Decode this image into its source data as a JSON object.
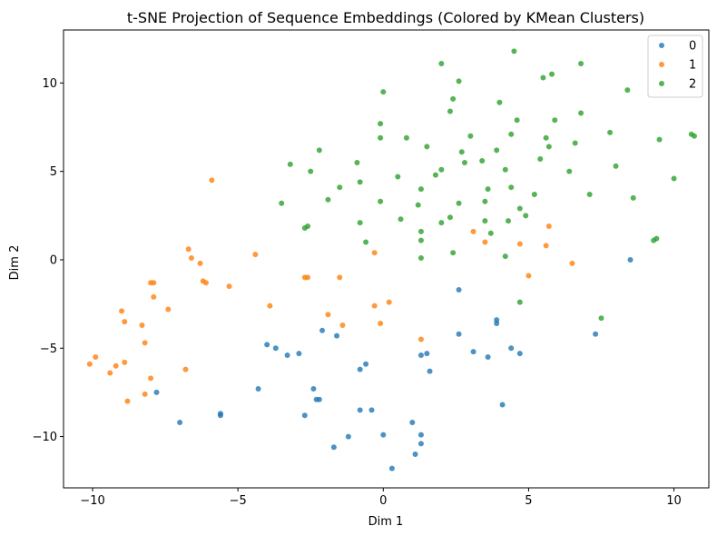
{
  "chart_data": {
    "type": "scatter",
    "title": "t-SNE Projection of Sequence Embeddings (Colored by KMean Clusters)",
    "xlabel": "Dim 1",
    "ylabel": "Dim 2",
    "xlim": [
      -11.0,
      11.2
    ],
    "ylim": [
      -12.9,
      13.0
    ],
    "xticks": [
      -10,
      -5,
      0,
      5,
      10
    ],
    "yticks": [
      -10,
      -5,
      0,
      5,
      10
    ],
    "xtick_labels": [
      "−10",
      "−5",
      "0",
      "5",
      "10"
    ],
    "ytick_labels": [
      "−10",
      "−5",
      "0",
      "5",
      "10"
    ],
    "grid": false,
    "legend_position": "top-right",
    "series": [
      {
        "name": "0",
        "color": "#1f77b4",
        "points": [
          [
            -7.8,
            -7.5
          ],
          [
            -7.0,
            -9.2
          ],
          [
            -5.6,
            -8.7
          ],
          [
            -5.6,
            -8.8
          ],
          [
            -4.3,
            -7.3
          ],
          [
            -4.0,
            -4.8
          ],
          [
            -3.7,
            -5.0
          ],
          [
            -3.3,
            -5.4
          ],
          [
            -2.9,
            -5.3
          ],
          [
            -2.7,
            -8.8
          ],
          [
            -2.4,
            -7.3
          ],
          [
            -2.3,
            -7.9
          ],
          [
            -2.2,
            -7.9
          ],
          [
            -2.1,
            -4.0
          ],
          [
            -1.7,
            -10.6
          ],
          [
            -1.6,
            -4.3
          ],
          [
            -1.2,
            -10.0
          ],
          [
            -0.8,
            -8.5
          ],
          [
            -0.8,
            -6.2
          ],
          [
            -0.6,
            -5.9
          ],
          [
            -0.4,
            -8.5
          ],
          [
            0.0,
            -9.9
          ],
          [
            0.3,
            -11.8
          ],
          [
            1.0,
            -9.2
          ],
          [
            1.1,
            -11.0
          ],
          [
            1.3,
            -10.4
          ],
          [
            1.3,
            -9.9
          ],
          [
            1.3,
            -5.4
          ],
          [
            1.5,
            -5.3
          ],
          [
            1.6,
            -6.3
          ],
          [
            2.6,
            -1.7
          ],
          [
            2.6,
            -4.2
          ],
          [
            3.1,
            -5.2
          ],
          [
            3.6,
            -5.5
          ],
          [
            3.9,
            -3.6
          ],
          [
            3.9,
            -3.4
          ],
          [
            4.1,
            -8.2
          ],
          [
            4.4,
            -5.0
          ],
          [
            4.7,
            -5.3
          ],
          [
            7.3,
            -4.2
          ],
          [
            8.5,
            0.0
          ]
        ]
      },
      {
        "name": "1",
        "color": "#ff7f0e",
        "points": [
          [
            -10.1,
            -5.9
          ],
          [
            -9.9,
            -5.5
          ],
          [
            -9.4,
            -6.4
          ],
          [
            -9.2,
            -6.0
          ],
          [
            -9.0,
            -2.9
          ],
          [
            -8.9,
            -3.5
          ],
          [
            -8.9,
            -5.8
          ],
          [
            -8.8,
            -8.0
          ],
          [
            -8.3,
            -3.7
          ],
          [
            -8.2,
            -4.7
          ],
          [
            -8.2,
            -7.6
          ],
          [
            -8.0,
            -1.3
          ],
          [
            -8.0,
            -6.7
          ],
          [
            -7.9,
            -1.3
          ],
          [
            -7.9,
            -2.1
          ],
          [
            -7.4,
            -2.8
          ],
          [
            -6.8,
            -6.2
          ],
          [
            -6.7,
            0.6
          ],
          [
            -6.6,
            0.1
          ],
          [
            -6.3,
            -0.2
          ],
          [
            -6.2,
            -1.2
          ],
          [
            -6.1,
            -1.3
          ],
          [
            -5.9,
            4.5
          ],
          [
            -5.3,
            -1.5
          ],
          [
            -4.4,
            0.3
          ],
          [
            -3.9,
            -2.6
          ],
          [
            -2.7,
            -1.0
          ],
          [
            -2.6,
            -1.0
          ],
          [
            -1.9,
            -3.1
          ],
          [
            -1.5,
            -1.0
          ],
          [
            -1.4,
            -3.7
          ],
          [
            -0.3,
            0.4
          ],
          [
            -0.3,
            -2.6
          ],
          [
            -0.1,
            -3.6
          ],
          [
            0.2,
            -2.4
          ],
          [
            1.3,
            -4.5
          ],
          [
            3.1,
            1.6
          ],
          [
            3.5,
            1.0
          ],
          [
            4.7,
            0.9
          ],
          [
            5.0,
            -0.9
          ],
          [
            5.6,
            0.8
          ],
          [
            5.7,
            1.9
          ],
          [
            6.5,
            -0.2
          ]
        ]
      },
      {
        "name": "2",
        "color": "#2ca02c",
        "points": [
          [
            -3.5,
            3.2
          ],
          [
            -3.2,
            5.4
          ],
          [
            -2.7,
            1.8
          ],
          [
            -2.6,
            1.9
          ],
          [
            -2.5,
            5.0
          ],
          [
            -2.2,
            6.2
          ],
          [
            -1.9,
            3.4
          ],
          [
            -1.5,
            4.1
          ],
          [
            -0.9,
            5.5
          ],
          [
            -0.8,
            2.1
          ],
          [
            -0.8,
            4.4
          ],
          [
            -0.6,
            1.0
          ],
          [
            -0.1,
            7.7
          ],
          [
            -0.1,
            6.9
          ],
          [
            -0.1,
            3.3
          ],
          [
            0.0,
            9.5
          ],
          [
            0.5,
            4.7
          ],
          [
            0.6,
            2.3
          ],
          [
            0.8,
            6.9
          ],
          [
            1.2,
            3.1
          ],
          [
            1.3,
            4.0
          ],
          [
            1.3,
            1.6
          ],
          [
            1.3,
            1.1
          ],
          [
            1.3,
            0.1
          ],
          [
            1.5,
            6.4
          ],
          [
            1.8,
            4.8
          ],
          [
            2.0,
            11.1
          ],
          [
            2.0,
            5.1
          ],
          [
            2.0,
            2.1
          ],
          [
            2.3,
            2.4
          ],
          [
            2.3,
            8.4
          ],
          [
            2.4,
            9.1
          ],
          [
            2.4,
            0.4
          ],
          [
            2.6,
            10.1
          ],
          [
            2.6,
            3.2
          ],
          [
            2.7,
            6.1
          ],
          [
            2.8,
            5.5
          ],
          [
            3.0,
            7.0
          ],
          [
            3.4,
            5.6
          ],
          [
            3.5,
            3.3
          ],
          [
            3.5,
            2.2
          ],
          [
            3.6,
            4.0
          ],
          [
            3.7,
            1.5
          ],
          [
            3.9,
            6.2
          ],
          [
            4.0,
            8.9
          ],
          [
            4.2,
            5.1
          ],
          [
            4.2,
            0.2
          ],
          [
            4.3,
            2.2
          ],
          [
            4.4,
            4.1
          ],
          [
            4.4,
            7.1
          ],
          [
            4.5,
            11.8
          ],
          [
            4.6,
            7.9
          ],
          [
            4.7,
            2.9
          ],
          [
            4.7,
            -2.4
          ],
          [
            4.9,
            2.5
          ],
          [
            5.2,
            3.7
          ],
          [
            5.4,
            5.7
          ],
          [
            5.5,
            10.3
          ],
          [
            5.6,
            6.9
          ],
          [
            5.7,
            6.4
          ],
          [
            5.8,
            10.5
          ],
          [
            5.9,
            7.9
          ],
          [
            6.4,
            5.0
          ],
          [
            6.6,
            6.6
          ],
          [
            6.8,
            11.1
          ],
          [
            6.8,
            8.3
          ],
          [
            7.1,
            3.7
          ],
          [
            7.5,
            -3.3
          ],
          [
            7.8,
            7.2
          ],
          [
            8.0,
            5.3
          ],
          [
            8.4,
            9.6
          ],
          [
            8.6,
            3.5
          ],
          [
            9.3,
            1.1
          ],
          [
            9.4,
            1.2
          ],
          [
            9.5,
            6.8
          ],
          [
            10.0,
            4.6
          ],
          [
            10.6,
            7.1
          ],
          [
            10.7,
            7.0
          ]
        ]
      }
    ]
  }
}
